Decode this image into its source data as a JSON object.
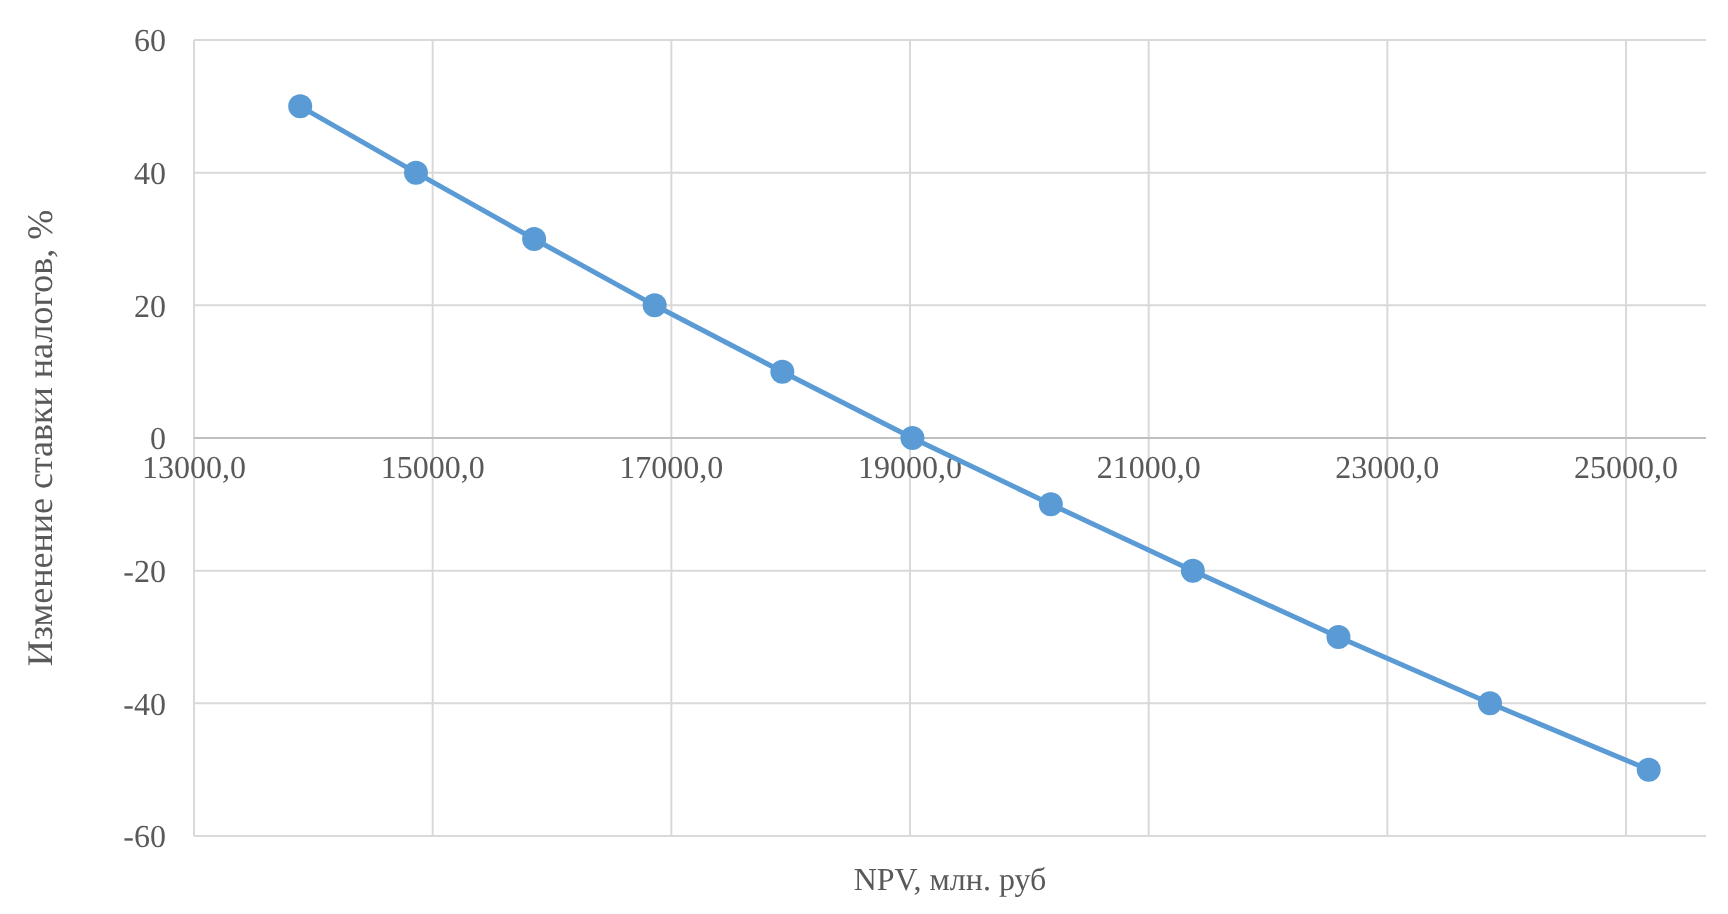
{
  "chart_data": {
    "type": "line",
    "xlabel": "NPV, млн. руб",
    "ylabel": "Изменение ставки налогов, %",
    "x": [
      13890,
      14860,
      15850,
      16860,
      17930,
      19020,
      20180,
      21370,
      22590,
      23860,
      25190
    ],
    "series": [
      {
        "color": "#5b9bd5",
        "values": [
          50,
          40,
          30,
          20,
          10,
          0,
          -10,
          -20,
          -30,
          -40,
          -50
        ]
      }
    ],
    "xlim": [
      13000,
      25670
    ],
    "xticks": [
      {
        "value": 13000,
        "label": "13000,0"
      },
      {
        "value": 15000,
        "label": "15000,0"
      },
      {
        "value": 17000,
        "label": "17000,0"
      },
      {
        "value": 19000,
        "label": "19000,0"
      },
      {
        "value": 21000,
        "label": "21000,0"
      },
      {
        "value": 23000,
        "label": "23000,0"
      },
      {
        "value": 25000,
        "label": "25000,0"
      }
    ],
    "ylim": [
      -60,
      60
    ],
    "yticks": [
      -60,
      -40,
      -20,
      0,
      20,
      40,
      60
    ],
    "grid": true,
    "marker": "circle",
    "line_style": "solid"
  }
}
